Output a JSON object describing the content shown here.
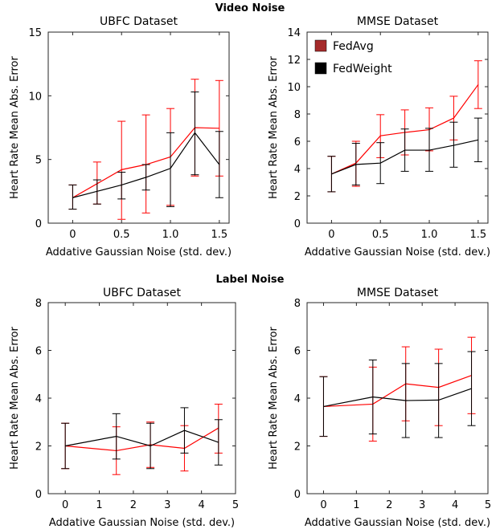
{
  "sections": [
    {
      "title": "Video Noise"
    },
    {
      "title": "Label Noise"
    }
  ],
  "legend": [
    {
      "label": "FedAvg",
      "color": "#a52a2a"
    },
    {
      "label": "FedWeight",
      "color": "#000000"
    }
  ],
  "chart_data": [
    {
      "type": "line",
      "section": "Video Noise",
      "title": "UBFC Dataset",
      "xlabel": "Addative Gaussian Noise (std. dev.)",
      "ylabel": "Heart Rate Mean Abs. Error",
      "xlim": [
        -0.25,
        1.6
      ],
      "ylim": [
        0,
        15
      ],
      "xticks": [
        0,
        0.5,
        1.0,
        1.5
      ],
      "xtick_labels": [
        "0",
        "0.5",
        "1.0",
        "1.5"
      ],
      "yticks": [
        0,
        5,
        10,
        15
      ],
      "ytick_labels": [
        "0",
        "5",
        "10",
        "15"
      ],
      "x": [
        0,
        0.25,
        0.5,
        0.75,
        1.0,
        1.25,
        1.5
      ],
      "series": [
        {
          "name": "FedAvg",
          "color": "#ff0000",
          "values": [
            2.0,
            3.1,
            4.2,
            4.6,
            5.2,
            7.5,
            7.45
          ],
          "err_low": [
            1.1,
            1.5,
            0.3,
            0.8,
            1.4,
            3.7,
            3.7
          ],
          "err_high": [
            3.0,
            4.8,
            8.0,
            8.5,
            9.0,
            11.3,
            11.2
          ]
        },
        {
          "name": "FedWeight",
          "color": "#000000",
          "values": [
            2.0,
            2.5,
            3.0,
            3.6,
            4.3,
            7.1,
            4.6
          ],
          "err_low": [
            1.1,
            1.5,
            1.9,
            2.6,
            1.3,
            3.8,
            2.0
          ],
          "err_high": [
            3.0,
            3.4,
            4.0,
            4.6,
            7.1,
            10.3,
            7.2
          ]
        }
      ]
    },
    {
      "type": "line",
      "section": "Video Noise",
      "title": "MMSE Dataset",
      "xlabel": "Addative Gaussian Noise (std. dev.)",
      "ylabel": "Heart Rate Mean Abs. Error",
      "xlim": [
        -0.25,
        1.6
      ],
      "ylim": [
        0,
        14
      ],
      "xticks": [
        0,
        0.5,
        1.0,
        1.5
      ],
      "xtick_labels": [
        "0",
        "0.5",
        "1.0",
        "1.5"
      ],
      "yticks": [
        0,
        2,
        4,
        6,
        8,
        10,
        12,
        14
      ],
      "ytick_labels": [
        "0",
        "2",
        "4",
        "6",
        "8",
        "10",
        "12",
        "14"
      ],
      "legend_position": "top-left",
      "x": [
        0,
        0.25,
        0.5,
        0.75,
        1.0,
        1.25,
        1.5
      ],
      "series": [
        {
          "name": "FedAvg",
          "color": "#ff0000",
          "values": [
            3.6,
            4.4,
            6.4,
            6.65,
            6.85,
            7.7,
            10.15
          ],
          "err_low": [
            2.3,
            2.7,
            4.8,
            5.0,
            5.3,
            6.1,
            8.4
          ],
          "err_high": [
            4.9,
            6.0,
            7.95,
            8.3,
            8.45,
            9.3,
            11.9
          ]
        },
        {
          "name": "FedWeight",
          "color": "#000000",
          "values": [
            3.6,
            4.3,
            4.4,
            5.35,
            5.35,
            5.7,
            6.1
          ],
          "err_low": [
            2.3,
            2.8,
            2.9,
            3.8,
            3.8,
            4.1,
            4.5
          ],
          "err_high": [
            4.9,
            5.85,
            5.9,
            6.9,
            6.95,
            7.4,
            7.7
          ]
        }
      ]
    },
    {
      "type": "line",
      "section": "Label Noise",
      "title": "UBFC Dataset",
      "xlabel": "Addative Gaussian Noise (std. dev.)",
      "ylabel": "Heart Rate Mean Abs. Error",
      "xlim": [
        -0.5,
        5
      ],
      "ylim": [
        0,
        8
      ],
      "xticks": [
        0,
        1,
        2,
        3,
        4,
        5
      ],
      "xtick_labels": [
        "0",
        "1",
        "2",
        "3",
        "4",
        "5"
      ],
      "yticks": [
        0,
        2,
        4,
        6,
        8
      ],
      "ytick_labels": [
        "0",
        "2",
        "4",
        "6",
        "8"
      ],
      "x": [
        0,
        1.5,
        2.5,
        3.5,
        4.5
      ],
      "series": [
        {
          "name": "FedAvg",
          "color": "#ff0000",
          "values": [
            2.0,
            1.8,
            2.05,
            1.9,
            2.75
          ],
          "err_low": [
            1.05,
            0.8,
            1.1,
            0.95,
            1.7
          ],
          "err_high": [
            2.95,
            2.8,
            3.0,
            2.85,
            3.75
          ]
        },
        {
          "name": "FedWeight",
          "color": "#000000",
          "values": [
            2.0,
            2.4,
            2.0,
            2.65,
            2.15
          ],
          "err_low": [
            1.05,
            1.45,
            1.05,
            1.7,
            1.2
          ],
          "err_high": [
            2.95,
            3.35,
            2.95,
            3.6,
            3.1
          ]
        }
      ]
    },
    {
      "type": "line",
      "section": "Label Noise",
      "title": "MMSE Dataset",
      "xlabel": "Addative Gaussian Noise (std. dev.)",
      "ylabel": "Heart Rate Mean Abs. Error",
      "xlim": [
        -0.5,
        5
      ],
      "ylim": [
        0,
        8
      ],
      "xticks": [
        0,
        1,
        2,
        3,
        4,
        5
      ],
      "xtick_labels": [
        "0",
        "1",
        "2",
        "3",
        "4",
        "5"
      ],
      "yticks": [
        0,
        2,
        4,
        6,
        8
      ],
      "ytick_labels": [
        "0",
        "2",
        "4",
        "6",
        "8"
      ],
      "x": [
        0,
        1.5,
        2.5,
        3.5,
        4.5
      ],
      "series": [
        {
          "name": "FedAvg",
          "color": "#ff0000",
          "values": [
            3.65,
            3.75,
            4.6,
            4.45,
            4.95
          ],
          "err_low": [
            2.4,
            2.2,
            3.05,
            2.85,
            3.35
          ],
          "err_high": [
            4.9,
            5.3,
            6.15,
            6.05,
            6.55
          ]
        },
        {
          "name": "FedWeight",
          "color": "#000000",
          "values": [
            3.65,
            4.05,
            3.9,
            3.92,
            4.4
          ],
          "err_low": [
            2.4,
            2.5,
            2.35,
            2.35,
            2.85
          ],
          "err_high": [
            4.9,
            5.6,
            5.45,
            5.45,
            5.95
          ]
        }
      ]
    }
  ]
}
